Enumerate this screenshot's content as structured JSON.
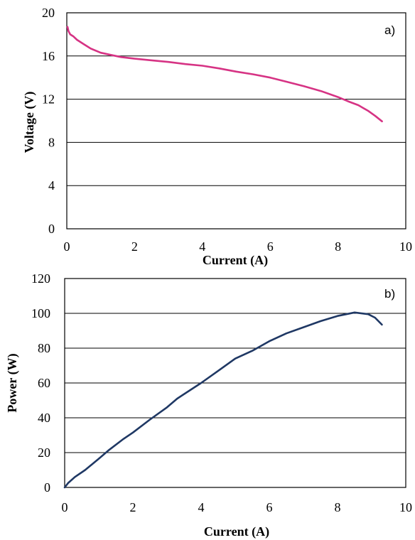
{
  "chart_data": [
    {
      "type": "line",
      "panel_label": "a)",
      "xlabel": "Current (A)",
      "ylabel": "Voltage (V)",
      "xlim": [
        0,
        10
      ],
      "ylim": [
        0,
        20
      ],
      "xticks": [
        0,
        2,
        4,
        6,
        8,
        10
      ],
      "yticks": [
        0,
        4,
        8,
        12,
        16,
        20
      ],
      "grid": "horizontal",
      "series": [
        {
          "color": "#d63384",
          "x": [
            0.02,
            0.05,
            0.1,
            0.2,
            0.3,
            0.5,
            0.7,
            1.0,
            1.3,
            1.6,
            2.0,
            2.5,
            3.0,
            3.5,
            4.0,
            4.5,
            5.0,
            5.5,
            6.0,
            6.5,
            7.0,
            7.5,
            8.0,
            8.3,
            8.6,
            8.9,
            9.1,
            9.3
          ],
          "y": [
            18.7,
            18.3,
            18.0,
            17.8,
            17.5,
            17.1,
            16.7,
            16.3,
            16.1,
            15.9,
            15.75,
            15.6,
            15.45,
            15.25,
            15.1,
            14.85,
            14.55,
            14.3,
            14.0,
            13.6,
            13.2,
            12.75,
            12.2,
            11.8,
            11.45,
            10.9,
            10.45,
            9.95
          ]
        }
      ]
    },
    {
      "type": "line",
      "panel_label": "b)",
      "xlabel": "Current (A)",
      "ylabel": "Power (W)",
      "xlim": [
        0,
        10
      ],
      "ylim": [
        0,
        120
      ],
      "xticks": [
        0,
        2,
        4,
        6,
        8,
        10
      ],
      "yticks": [
        0,
        20,
        40,
        60,
        80,
        100,
        120
      ],
      "grid": "horizontal",
      "series": [
        {
          "color": "#1f3864",
          "x": [
            0,
            0.1,
            0.3,
            0.6,
            1.0,
            1.3,
            1.7,
            2.0,
            2.5,
            3.0,
            3.3,
            4.0,
            4.5,
            5.0,
            5.5,
            6.0,
            6.5,
            7.0,
            7.5,
            8.0,
            8.5,
            8.9,
            9.1,
            9.3
          ],
          "y": [
            0,
            2.5,
            6,
            10,
            16.5,
            21.5,
            27.5,
            31.5,
            39,
            46,
            51,
            60,
            67,
            74,
            78.5,
            84,
            88.5,
            92,
            95.5,
            98.5,
            100.5,
            99.5,
            97.5,
            93.5
          ]
        }
      ]
    }
  ]
}
